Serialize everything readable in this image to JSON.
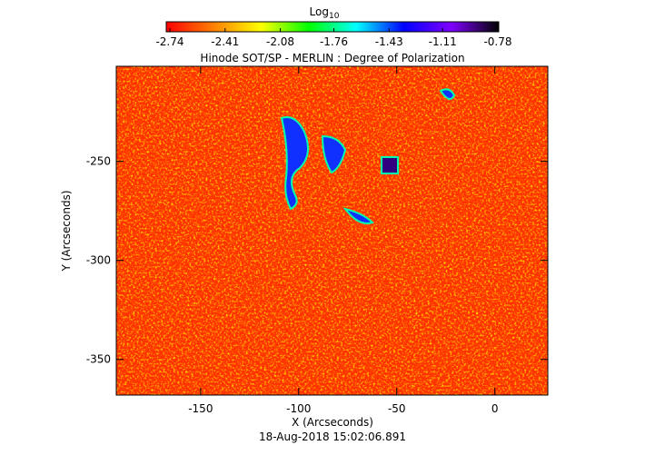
{
  "chart_data": {
    "type": "image",
    "title": "Hinode SOT/SP - MERLIN : Degree of Polarization",
    "x_label": "X (Arcseconds)",
    "y_label": "Y (Arcseconds)",
    "date": "18-Aug-2018 15:02:06.891",
    "xlim": [
      -193,
      27
    ],
    "xticks": [
      -150,
      -100,
      -50,
      0
    ],
    "ylim": [
      -368,
      -202
    ],
    "yticks": [
      -250,
      -300,
      -350
    ],
    "colorbar": {
      "title": "Log",
      "title_sub": "10",
      "lim": [
        -2.74,
        -0.78
      ],
      "ticks": [
        -2.74,
        -2.41,
        -2.08,
        -1.76,
        -1.43,
        -1.11,
        -0.78
      ],
      "colors": [
        "#ff0000",
        "#ff8000",
        "#ffff00",
        "#00ff00",
        "#00ffff",
        "#0000ff",
        "#8000ff",
        "#000000"
      ]
    }
  }
}
